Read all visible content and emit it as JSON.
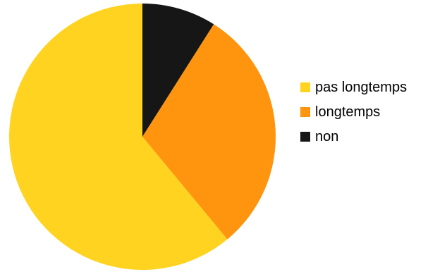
{
  "chart_data": {
    "type": "pie",
    "title": "",
    "categories": [
      "pas longtemps",
      "longtemps",
      "non"
    ],
    "values": [
      61,
      30,
      9
    ],
    "colors": [
      "#FFD320",
      "#FF950E",
      "#161616"
    ],
    "start_angle": "12 o'clock",
    "direction": "counter-clockwise",
    "legend_position": "right"
  }
}
